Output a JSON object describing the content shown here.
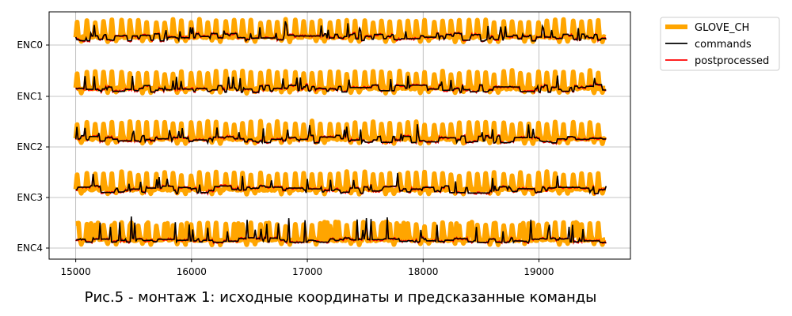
{
  "caption": "Рис.5 - монтаж 1: исходные координаты и предсказанные команды",
  "chart_data": {
    "type": "line",
    "xlim": [
      14770,
      19790
    ],
    "x_ticks": [
      15000,
      16000,
      17000,
      18000,
      19000
    ],
    "x_start": 15000,
    "x_end": 19580,
    "categories": [
      "ENC0",
      "ENC1",
      "ENC2",
      "ENC3",
      "ENC4"
    ],
    "grid": true,
    "legend_position": "outside-top-right",
    "series": [
      {
        "name": "GLOVE_CH",
        "color": "#ffa500",
        "kind": "thick"
      },
      {
        "name": "commands",
        "color": "#000000",
        "kind": "thin"
      },
      {
        "name": "postprocessed",
        "color": "#ff0000",
        "kind": "thin"
      }
    ]
  }
}
